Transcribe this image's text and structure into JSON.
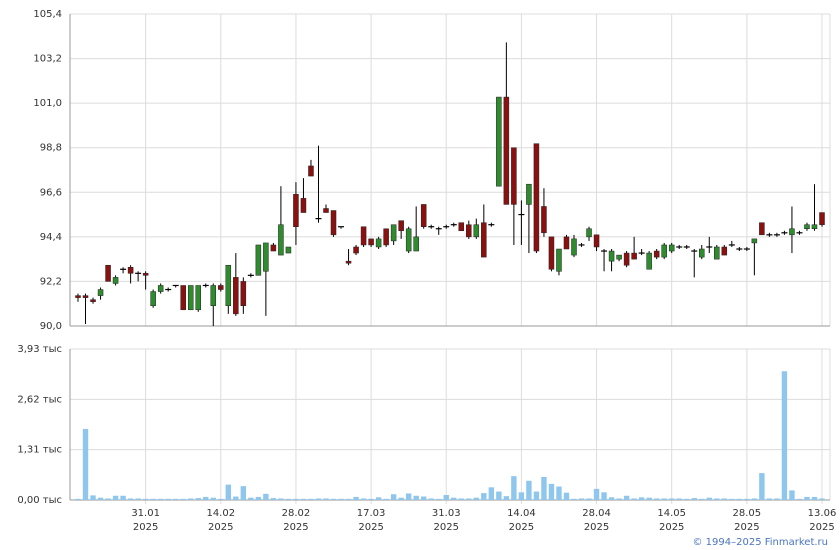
{
  "chart_data": {
    "type": "candlestick",
    "up_color": "#2e8b2e",
    "down_color": "#8b1010",
    "flat_color": "#000000",
    "grid": true,
    "copyright": "© 1994–2025 Finmarket.ru",
    "categories": [
      null,
      null,
      null,
      null,
      null,
      null,
      null,
      null,
      null,
      [
        "31.01",
        "2025"
      ],
      null,
      null,
      null,
      null,
      null,
      null,
      null,
      null,
      null,
      [
        "14.02",
        "2025"
      ],
      null,
      null,
      null,
      null,
      null,
      null,
      null,
      null,
      null,
      [
        "28.02",
        "2025"
      ],
      null,
      null,
      null,
      null,
      null,
      null,
      null,
      null,
      null,
      [
        "17.03",
        "2025"
      ],
      null,
      null,
      null,
      null,
      null,
      null,
      null,
      null,
      null,
      [
        "31.03",
        "2025"
      ],
      null,
      null,
      null,
      null,
      null,
      null,
      null,
      null,
      null,
      [
        "14.04",
        "2025"
      ],
      null,
      null,
      null,
      null,
      null,
      null,
      null,
      null,
      null,
      [
        "28.04",
        "2025"
      ],
      null,
      null,
      null,
      null,
      null,
      null,
      null,
      null,
      null,
      [
        "14.05",
        "2025"
      ],
      null,
      null,
      null,
      null,
      null,
      null,
      null,
      null,
      null,
      [
        "28.05",
        "2025"
      ],
      null,
      null,
      null,
      null,
      null,
      null,
      null,
      null,
      null,
      [
        "13.06",
        "2025"
      ]
    ],
    "ohlc": [
      [
        91.5,
        91.6,
        91.2,
        91.4
      ],
      [
        91.5,
        91.6,
        90.1,
        91.4
      ],
      [
        91.3,
        91.4,
        91.1,
        91.2
      ],
      [
        91.5,
        91.9,
        91.3,
        91.8
      ],
      [
        93.0,
        93.0,
        92.2,
        92.2
      ],
      [
        92.1,
        92.5,
        92.0,
        92.4
      ],
      [
        92.8,
        92.9,
        92.6,
        92.8
      ],
      [
        92.9,
        93.0,
        92.1,
        92.6
      ],
      [
        92.6,
        92.7,
        92.2,
        92.6
      ],
      [
        92.6,
        92.7,
        91.8,
        92.5
      ],
      [
        91.0,
        91.8,
        90.9,
        91.7
      ],
      [
        91.7,
        92.1,
        91.6,
        92.0
      ],
      [
        91.8,
        91.9,
        91.7,
        91.8
      ],
      [
        92.0,
        92.0,
        91.9,
        92.0
      ],
      [
        92.0,
        92.0,
        90.8,
        90.8
      ],
      [
        90.8,
        92.0,
        90.8,
        92.0
      ],
      [
        90.8,
        92.0,
        90.7,
        92.0
      ],
      [
        92.0,
        92.1,
        91.9,
        92.0
      ],
      [
        91.0,
        92.1,
        90.0,
        92.0
      ],
      [
        92.0,
        92.1,
        91.7,
        91.8
      ],
      [
        91.0,
        93.0,
        90.6,
        93.0
      ],
      [
        92.4,
        93.6,
        90.5,
        90.6
      ],
      [
        92.2,
        92.4,
        90.6,
        91.0
      ],
      [
        92.5,
        92.6,
        92.4,
        92.5
      ],
      [
        92.5,
        94.0,
        92.5,
        94.0
      ],
      [
        92.7,
        94.1,
        90.5,
        94.1
      ],
      [
        94.0,
        94.1,
        93.7,
        93.7
      ],
      [
        93.5,
        96.9,
        93.5,
        95.0
      ],
      [
        93.6,
        93.9,
        93.6,
        93.9
      ],
      [
        96.5,
        97.1,
        94.0,
        94.9
      ],
      [
        96.3,
        97.3,
        95.6,
        95.6
      ],
      [
        97.9,
        98.2,
        97.4,
        97.4
      ],
      [
        95.3,
        98.9,
        95.1,
        95.3
      ],
      [
        95.8,
        96.0,
        95.6,
        95.6
      ],
      [
        95.7,
        95.7,
        94.4,
        94.5
      ],
      [
        94.9,
        94.9,
        94.8,
        94.9
      ],
      [
        93.2,
        93.8,
        93.0,
        93.1
      ],
      [
        93.9,
        94.0,
        93.5,
        93.6
      ],
      [
        94.9,
        94.9,
        93.9,
        94.0
      ],
      [
        94.3,
        94.3,
        93.9,
        94.0
      ],
      [
        93.9,
        94.4,
        93.8,
        94.3
      ],
      [
        94.8,
        94.8,
        93.9,
        94.0
      ],
      [
        94.2,
        95.0,
        94.0,
        95.0
      ],
      [
        95.2,
        95.2,
        94.3,
        94.7
      ],
      [
        93.7,
        94.9,
        93.6,
        94.8
      ],
      [
        93.7,
        95.9,
        93.7,
        94.4
      ],
      [
        96.0,
        96.0,
        94.8,
        94.9
      ],
      [
        94.9,
        95.0,
        94.8,
        94.9
      ],
      [
        94.8,
        94.9,
        94.5,
        94.8
      ],
      [
        94.9,
        95.0,
        94.8,
        94.9
      ],
      [
        95.0,
        95.1,
        94.9,
        95.0
      ],
      [
        95.1,
        95.1,
        94.7,
        94.7
      ],
      [
        95.0,
        95.2,
        94.3,
        94.4
      ],
      [
        94.4,
        95.3,
        94.3,
        95.0
      ],
      [
        95.1,
        96.0,
        93.4,
        93.4
      ],
      [
        95.0,
        95.1,
        94.9,
        95.0
      ],
      [
        96.9,
        101.3,
        96.9,
        101.3
      ],
      [
        101.3,
        104.0,
        96.0,
        96.0
      ],
      [
        98.8,
        98.8,
        94.0,
        96.0
      ],
      [
        95.5,
        96.2,
        94.0,
        95.5
      ],
      [
        96.0,
        97.0,
        93.6,
        97.0
      ],
      [
        99.0,
        99.0,
        93.6,
        93.7
      ],
      [
        95.9,
        96.8,
        94.4,
        94.6
      ],
      [
        94.4,
        94.4,
        92.7,
        92.8
      ],
      [
        92.7,
        93.8,
        92.5,
        93.8
      ],
      [
        94.4,
        94.5,
        93.8,
        93.8
      ],
      [
        93.5,
        94.5,
        93.4,
        94.3
      ],
      [
        94.0,
        94.1,
        93.9,
        94.0
      ],
      [
        94.4,
        94.9,
        94.2,
        94.8
      ],
      [
        94.5,
        94.5,
        93.7,
        93.9
      ],
      [
        93.7,
        93.8,
        92.7,
        93.7
      ],
      [
        93.2,
        93.8,
        92.7,
        93.7
      ],
      [
        93.3,
        93.5,
        93.2,
        93.5
      ],
      [
        93.6,
        93.7,
        92.9,
        93.0
      ],
      [
        93.6,
        94.4,
        93.3,
        93.3
      ],
      [
        93.6,
        93.8,
        93.5,
        93.6
      ],
      [
        92.8,
        93.7,
        92.8,
        93.6
      ],
      [
        93.7,
        93.8,
        93.3,
        93.4
      ],
      [
        93.4,
        94.1,
        93.3,
        94.0
      ],
      [
        93.7,
        94.1,
        93.6,
        94.0
      ],
      [
        93.9,
        94.0,
        93.8,
        93.9
      ],
      [
        93.9,
        94.0,
        93.8,
        93.9
      ],
      [
        93.7,
        93.8,
        92.4,
        93.7
      ],
      [
        93.4,
        94.0,
        93.3,
        93.8
      ],
      [
        93.9,
        94.4,
        93.6,
        93.9
      ],
      [
        93.3,
        94.0,
        93.3,
        93.9
      ],
      [
        93.9,
        94.0,
        93.5,
        93.5
      ],
      [
        94.0,
        94.2,
        93.9,
        94.0
      ],
      [
        93.8,
        93.9,
        93.7,
        93.8
      ],
      [
        93.8,
        93.9,
        93.7,
        93.8
      ],
      [
        94.1,
        94.3,
        92.5,
        94.3
      ],
      [
        95.1,
        95.1,
        94.5,
        94.5
      ],
      [
        94.5,
        94.6,
        94.4,
        94.5
      ],
      [
        94.5,
        94.6,
        94.4,
        94.5
      ],
      [
        94.6,
        94.7,
        94.5,
        94.6
      ],
      [
        94.5,
        95.9,
        93.6,
        94.8
      ],
      [
        94.6,
        94.7,
        94.5,
        94.6
      ],
      [
        94.8,
        95.1,
        94.7,
        95.0
      ],
      [
        94.8,
        97.0,
        94.7,
        95.0
      ],
      [
        95.6,
        95.6,
        94.9,
        95.0
      ]
    ],
    "ylim": [
      90.0,
      105.4
    ],
    "yticks": [
      {
        "value": 90.0,
        "label": "90,0"
      },
      {
        "value": 92.2,
        "label": "92,2"
      },
      {
        "value": 94.4,
        "label": "94,4"
      },
      {
        "value": 96.6,
        "label": "96,6"
      },
      {
        "value": 98.8,
        "label": "98,8"
      },
      {
        "value": 101.0,
        "label": "101,0"
      },
      {
        "value": 103.2,
        "label": "103,2"
      },
      {
        "value": 105.4,
        "label": "105,4"
      }
    ],
    "volume": {
      "type": "bar",
      "color": "#8ec6ee",
      "values": [
        30,
        1850,
        120,
        60,
        40,
        110,
        110,
        40,
        40,
        30,
        30,
        30,
        30,
        30,
        30,
        40,
        50,
        80,
        60,
        30,
        400,
        90,
        360,
        60,
        80,
        160,
        50,
        40,
        30,
        30,
        30,
        30,
        40,
        40,
        30,
        30,
        30,
        80,
        40,
        30,
        70,
        30,
        150,
        60,
        170,
        110,
        90,
        40,
        30,
        130,
        60,
        40,
        40,
        60,
        180,
        330,
        220,
        100,
        620,
        200,
        500,
        220,
        600,
        420,
        350,
        190,
        30,
        40,
        40,
        290,
        200,
        70,
        40,
        110,
        40,
        70,
        60,
        40,
        40,
        40,
        40,
        30,
        50,
        30,
        60,
        40,
        40,
        30,
        30,
        30,
        40,
        700,
        40,
        40,
        3350,
        250,
        30,
        80,
        80,
        40
      ],
      "ylim": [
        0,
        3930
      ],
      "yticks": [
        {
          "value": 0,
          "label": "0,00 тыс"
        },
        {
          "value": 1310,
          "label": "1,31 тыс"
        },
        {
          "value": 2620,
          "label": "2,62 тыс"
        },
        {
          "value": 3930,
          "label": "3,93 тыс"
        }
      ]
    }
  }
}
